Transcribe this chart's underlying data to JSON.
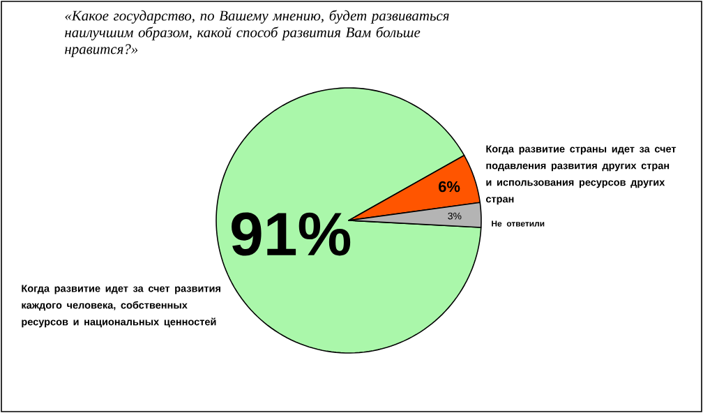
{
  "chart_data": {
    "type": "pie",
    "title": "«Какое государство, по Вашему мнению, будет развиваться наилучшим образом, какой способ развития Вам больше нравится?»",
    "categories": [
      "Когда развитие идет за счет развития каждого человека, собственных ресурсов и национальных ценностей",
      "Когда развитие страны идет за счет подавления развития других стран и использования ресурсов других стран",
      "Не ответили"
    ],
    "values": [
      91,
      6,
      3
    ],
    "value_labels": [
      "91%",
      "6%",
      "3%"
    ],
    "colors": [
      "#aaf7aa",
      "#ff5500",
      "#b4b4b4"
    ]
  }
}
